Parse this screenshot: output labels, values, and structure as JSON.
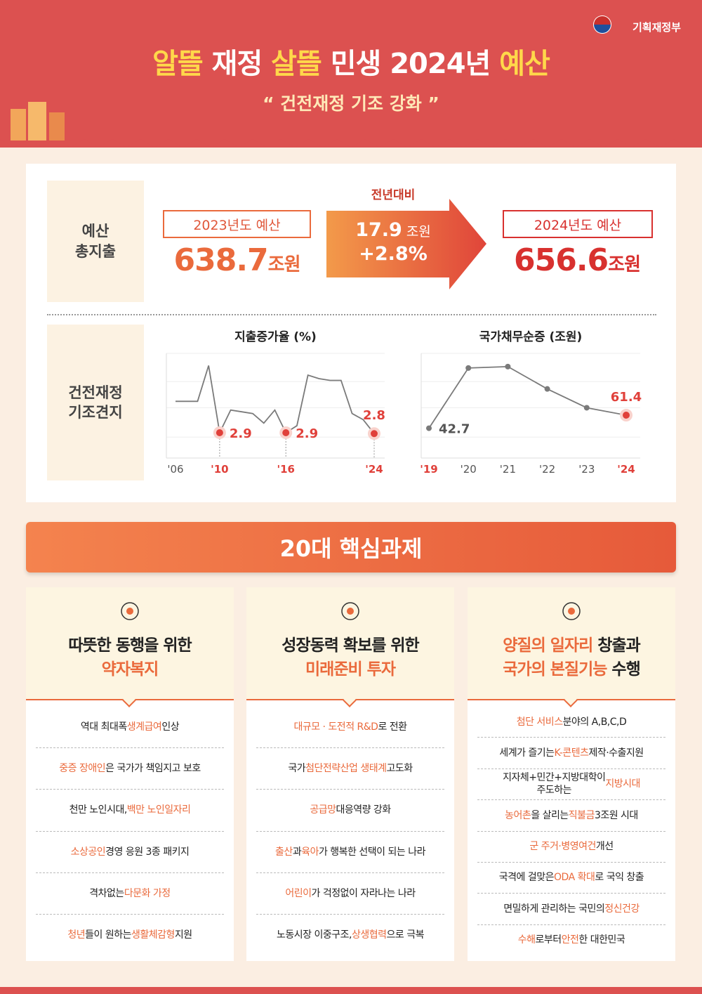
{
  "header": {
    "ministry": "기획재정부",
    "title": [
      {
        "em": "알뜰"
      },
      {
        "t": " 재정 "
      },
      {
        "em": "살뜰"
      },
      {
        "t": " 민생 2024년 "
      },
      {
        "em": "예산"
      }
    ],
    "subtitle": "“ 건전재정 기조 강화 ”"
  },
  "budget": {
    "label": "예산\n총지출",
    "prev": {
      "title": "2023년도 예산",
      "amount": 638.7,
      "unit": "조원"
    },
    "change": {
      "title": "전년대비",
      "amount": 17.9,
      "unit": "조원",
      "rate": "+2.8%"
    },
    "next": {
      "title": "2024년도 예산",
      "amount": 656.6,
      "unit": "조원"
    }
  },
  "fiscal": {
    "label": "건전재정\n기조견지"
  },
  "chart_data": [
    {
      "type": "line",
      "title": "지출증가율 (%)",
      "categories": [
        "'06",
        null,
        null,
        null,
        "'10",
        null,
        null,
        null,
        null,
        null,
        "'16",
        null,
        null,
        null,
        null,
        null,
        null,
        null,
        "'24"
      ],
      "values": [
        6.5,
        6.5,
        6.5,
        10.6,
        2.9,
        5.5,
        5.3,
        5.1,
        4.0,
        5.5,
        2.9,
        3.7,
        9.5,
        9.1,
        8.9,
        8.9,
        5.1,
        4.4,
        2.8
      ],
      "value_labels": [
        null,
        null,
        null,
        null,
        "2.9",
        null,
        null,
        null,
        null,
        null,
        "2.9",
        null,
        null,
        null,
        null,
        null,
        null,
        null,
        "2.8"
      ],
      "highlight": [
        4,
        10,
        18
      ],
      "color": "#7a7a7a",
      "highlight_color": "#e0403a",
      "ylim": [
        0,
        12
      ],
      "drop_lines": true,
      "markers": false
    },
    {
      "type": "line",
      "title": "국가채무순증 (조원)",
      "categories": [
        "'19",
        "'20",
        "'21",
        "'22",
        "'23",
        "'24"
      ],
      "values": [
        42.7,
        129,
        131,
        99,
        72,
        61.4
      ],
      "value_labels": [
        "42.7",
        null,
        null,
        null,
        null,
        "61.4"
      ],
      "highlight": [
        5
      ],
      "color": "#7a7a7a",
      "highlight_color": "#e0403a",
      "ylim": [
        0,
        150
      ],
      "drop_lines": false,
      "markers": true
    }
  ],
  "tasks": {
    "title": "20대 핵심과제",
    "columns": [
      {
        "title": [
          [
            {
              "t": "따뜻한 동행을 위한"
            }
          ],
          [
            {
              "em": "약자복지"
            }
          ]
        ],
        "items": [
          [
            {
              "t": "역대 최대폭 "
            },
            {
              "em": "생계급여"
            },
            {
              "t": " 인상"
            }
          ],
          [
            {
              "em": "중증 장애인"
            },
            {
              "t": "은 국가가 책임지고 보호"
            }
          ],
          [
            {
              "t": "천만 노인시대, "
            },
            {
              "em": "백만 노인일자리"
            }
          ],
          [
            {
              "em": "소상공인"
            },
            {
              "t": " 경영 응원 3종 패키지"
            }
          ],
          [
            {
              "t": "격차없는 "
            },
            {
              "em": "다문화 가정"
            }
          ],
          [
            {
              "em": "청년"
            },
            {
              "t": "들이 원하는 "
            },
            {
              "em": "생활체감형"
            },
            {
              "t": " 지원"
            }
          ]
        ]
      },
      {
        "title": [
          [
            {
              "t": "성장동력 확보를 위한"
            }
          ],
          [
            {
              "em": "미래준비 투자"
            }
          ]
        ],
        "items": [
          [
            {
              "em": "대규모 · 도전적 R&D"
            },
            {
              "t": "로 전환"
            }
          ],
          [
            {
              "t": "국가 "
            },
            {
              "em": "첨단전략산업 생태계"
            },
            {
              "t": " 고도화"
            }
          ],
          [
            {
              "em": "공급망"
            },
            {
              "t": " 대응역량 강화"
            }
          ],
          [
            {
              "em": "출산"
            },
            {
              "t": "과 "
            },
            {
              "em": "육아"
            },
            {
              "t": "가 행복한 선택이 되는 나라"
            }
          ],
          [
            {
              "em": "어린이"
            },
            {
              "t": "가 걱정없이 자라나는 나라"
            }
          ],
          [
            {
              "t": "노동시장 이중구조, "
            },
            {
              "em": "상생협력"
            },
            {
              "t": "으로 극복"
            }
          ]
        ]
      },
      {
        "title": [
          [
            {
              "em": "양질의 일자리"
            },
            {
              "t": " 창출과"
            }
          ],
          [
            {
              "em": "국가의 본질기능"
            },
            {
              "t": " 수행"
            }
          ]
        ],
        "items": [
          [
            {
              "em": "첨단 서비스"
            },
            {
              "t": " 분야의 A,B,C,D"
            }
          ],
          [
            {
              "t": "세계가 즐기는 "
            },
            {
              "em": "K-콘텐츠"
            },
            {
              "t": " 제작·수출지원"
            }
          ],
          [
            {
              "t": "지자체+민간+지방대학이\n주도하는 "
            },
            {
              "em": "지방시대"
            }
          ],
          [
            {
              "em": "농어촌"
            },
            {
              "t": "을 살리는 "
            },
            {
              "em": "직불금"
            },
            {
              "t": " 3조원 시대"
            }
          ],
          [
            {
              "em": "군 주거·병영여건"
            },
            {
              "t": " 개선"
            }
          ],
          [
            {
              "t": "국격에 걸맞은 "
            },
            {
              "em": "ODA 확대"
            },
            {
              "t": "로 국익 창출"
            }
          ],
          [
            {
              "t": "면밀하게 관리하는 국민의 "
            },
            {
              "em": "정신건강"
            }
          ],
          [
            {
              "em": "수해"
            },
            {
              "t": "로부터 "
            },
            {
              "em": "안전"
            },
            {
              "t": "한 대한민국"
            }
          ]
        ]
      }
    ]
  }
}
